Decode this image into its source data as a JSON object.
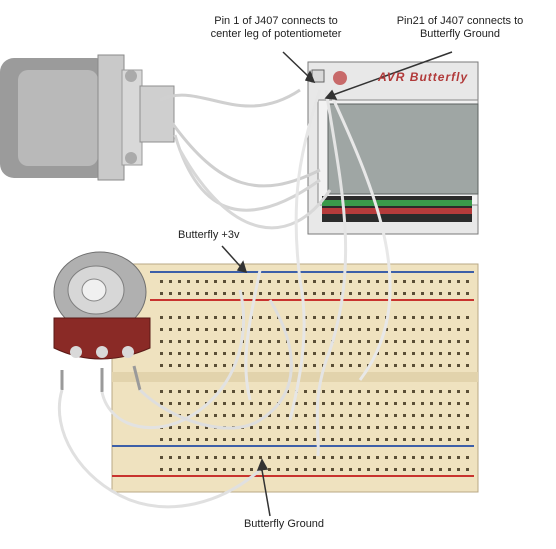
{
  "annotations": {
    "pin1": [
      "Pin 1 of J407 connects to",
      "center leg of potentiometer"
    ],
    "pin21": [
      "Pin21 of J407 connects to",
      "Butterfly Ground"
    ],
    "butterfly_3v": "Butterfly +3v",
    "butterfly_ground": "Butterfly Ground"
  },
  "board_logo": "AVR Butterfly",
  "colors": {
    "breadboard": "#efe2bf",
    "rail_red": "#c8332e",
    "rail_blue": "#3d5fa8",
    "pot_body": "#8a2a26",
    "connector": "#8d8d8d",
    "lcd": "#9fa6a4"
  }
}
